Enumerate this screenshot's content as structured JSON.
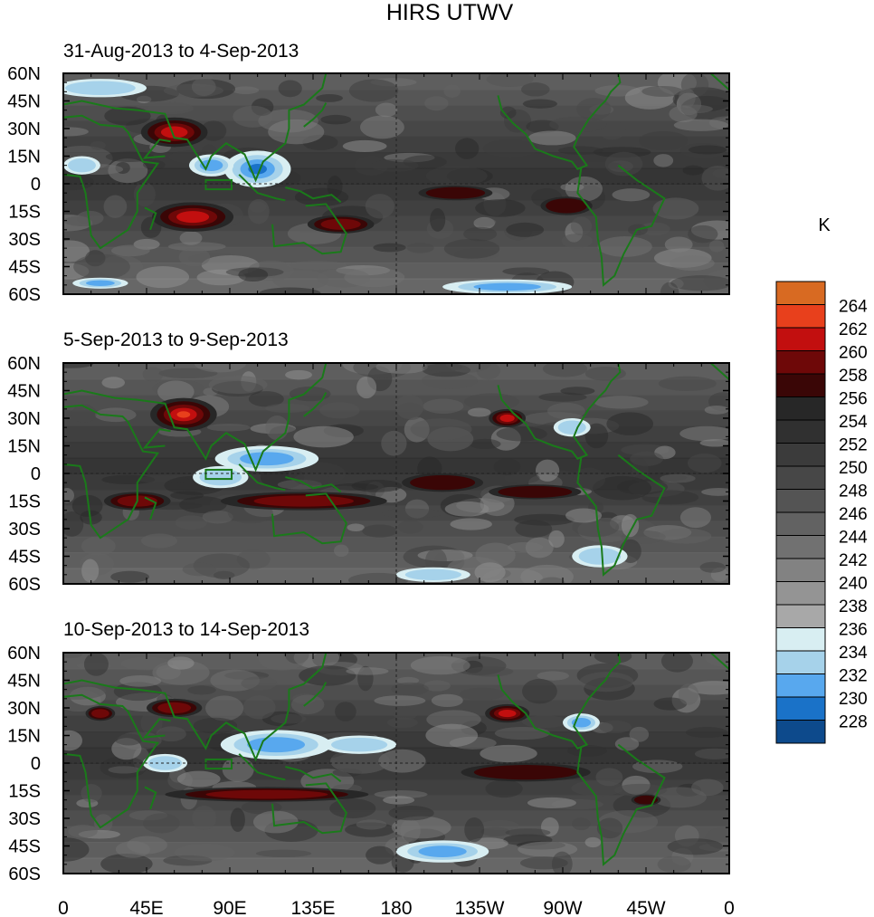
{
  "title": "HIRS UTWV",
  "units": "K",
  "colors": {
    "land_outline": "#1a7a1a",
    "frame": "#000000",
    "palette": [
      "#16187a",
      "#0d4a8c",
      "#1a72c8",
      "#58a8ee",
      "#a6d2ea",
      "#d8eef2",
      "#a8a8a8",
      "#949494",
      "#828282",
      "#717171",
      "#626262",
      "#545454",
      "#474747",
      "#3b3b3b",
      "#303030",
      "#272727",
      "#3a0606",
      "#6e0808",
      "#c20f0f",
      "#e8401c",
      "#d86a22"
    ]
  },
  "colorbar": {
    "labels": [
      "264",
      "262",
      "260",
      "258",
      "256",
      "254",
      "252",
      "250",
      "248",
      "246",
      "244",
      "242",
      "240",
      "238",
      "236",
      "234",
      "232",
      "230",
      "228"
    ]
  },
  "axes": {
    "lat_ticks": [
      "60N",
      "45N",
      "30N",
      "15N",
      "0",
      "15S",
      "30S",
      "45S",
      "60S"
    ],
    "lon_ticks": [
      "0",
      "45E",
      "90E",
      "135E",
      "180",
      "135W",
      "90W",
      "45W",
      "0"
    ]
  },
  "panels": [
    {
      "label": "31-Aug-2013 to 4-Sep-2013",
      "warm": [
        {
          "lon": 60,
          "lat": 28,
          "a": 18,
          "b": 8,
          "level": 3
        },
        {
          "lon": 70,
          "lat": -18,
          "a": 22,
          "b": 8,
          "level": 3
        },
        {
          "lon": 150,
          "lat": -22,
          "a": 18,
          "b": 5,
          "level": 2
        },
        {
          "lon": 272,
          "lat": -12,
          "a": 14,
          "b": 5,
          "level": 1
        },
        {
          "lon": 212,
          "lat": -5,
          "a": 20,
          "b": 4,
          "level": 1
        }
      ],
      "cold": [
        {
          "lon": 105,
          "lat": 8,
          "a": 18,
          "b": 10,
          "level": 3
        },
        {
          "lon": 80,
          "lat": 10,
          "a": 12,
          "b": 6,
          "level": 2
        },
        {
          "lon": 240,
          "lat": -56,
          "a": 35,
          "b": 4,
          "level": 2
        },
        {
          "lon": 20,
          "lat": -54,
          "a": 15,
          "b": 3,
          "level": 2
        },
        {
          "lon": 10,
          "lat": 10,
          "a": 10,
          "b": 5,
          "level": 1
        },
        {
          "lon": 20,
          "lat": 52,
          "a": 25,
          "b": 5,
          "level": 1
        }
      ]
    },
    {
      "label": "5-Sep-2013 to 9-Sep-2013",
      "warm": [
        {
          "lon": 65,
          "lat": 32,
          "a": 18,
          "b": 9,
          "level": 4
        },
        {
          "lon": 130,
          "lat": -15,
          "a": 45,
          "b": 5,
          "level": 2
        },
        {
          "lon": 40,
          "lat": -15,
          "a": 18,
          "b": 5,
          "level": 2
        },
        {
          "lon": 240,
          "lat": 30,
          "a": 10,
          "b": 5,
          "level": 3
        },
        {
          "lon": 205,
          "lat": -5,
          "a": 22,
          "b": 5,
          "level": 1
        },
        {
          "lon": 255,
          "lat": -10,
          "a": 25,
          "b": 4,
          "level": 1
        }
      ],
      "cold": [
        {
          "lon": 110,
          "lat": 8,
          "a": 28,
          "b": 7,
          "level": 2
        },
        {
          "lon": 85,
          "lat": -2,
          "a": 15,
          "b": 6,
          "level": 1
        },
        {
          "lon": 200,
          "lat": -55,
          "a": 20,
          "b": 4,
          "level": 1
        },
        {
          "lon": 290,
          "lat": -45,
          "a": 15,
          "b": 6,
          "level": 1
        },
        {
          "lon": 275,
          "lat": 25,
          "a": 10,
          "b": 5,
          "level": 1
        }
      ]
    },
    {
      "label": "10-Sep-2013 to 14-Sep-2013",
      "warm": [
        {
          "lon": 60,
          "lat": 30,
          "a": 15,
          "b": 5,
          "level": 2
        },
        {
          "lon": 20,
          "lat": 27,
          "a": 8,
          "b": 4,
          "level": 2
        },
        {
          "lon": 110,
          "lat": -17,
          "a": 55,
          "b": 4,
          "level": 2
        },
        {
          "lon": 240,
          "lat": 27,
          "a": 12,
          "b": 5,
          "level": 3
        },
        {
          "lon": 250,
          "lat": -5,
          "a": 35,
          "b": 5,
          "level": 1
        },
        {
          "lon": 315,
          "lat": -20,
          "a": 8,
          "b": 3,
          "level": 1
        }
      ],
      "cold": [
        {
          "lon": 115,
          "lat": 10,
          "a": 30,
          "b": 8,
          "level": 2
        },
        {
          "lon": 205,
          "lat": -48,
          "a": 25,
          "b": 6,
          "level": 2
        },
        {
          "lon": 160,
          "lat": 10,
          "a": 20,
          "b": 5,
          "level": 1
        },
        {
          "lon": 280,
          "lat": 22,
          "a": 10,
          "b": 5,
          "level": 2
        },
        {
          "lon": 55,
          "lat": 0,
          "a": 12,
          "b": 5,
          "level": 1
        }
      ]
    }
  ]
}
